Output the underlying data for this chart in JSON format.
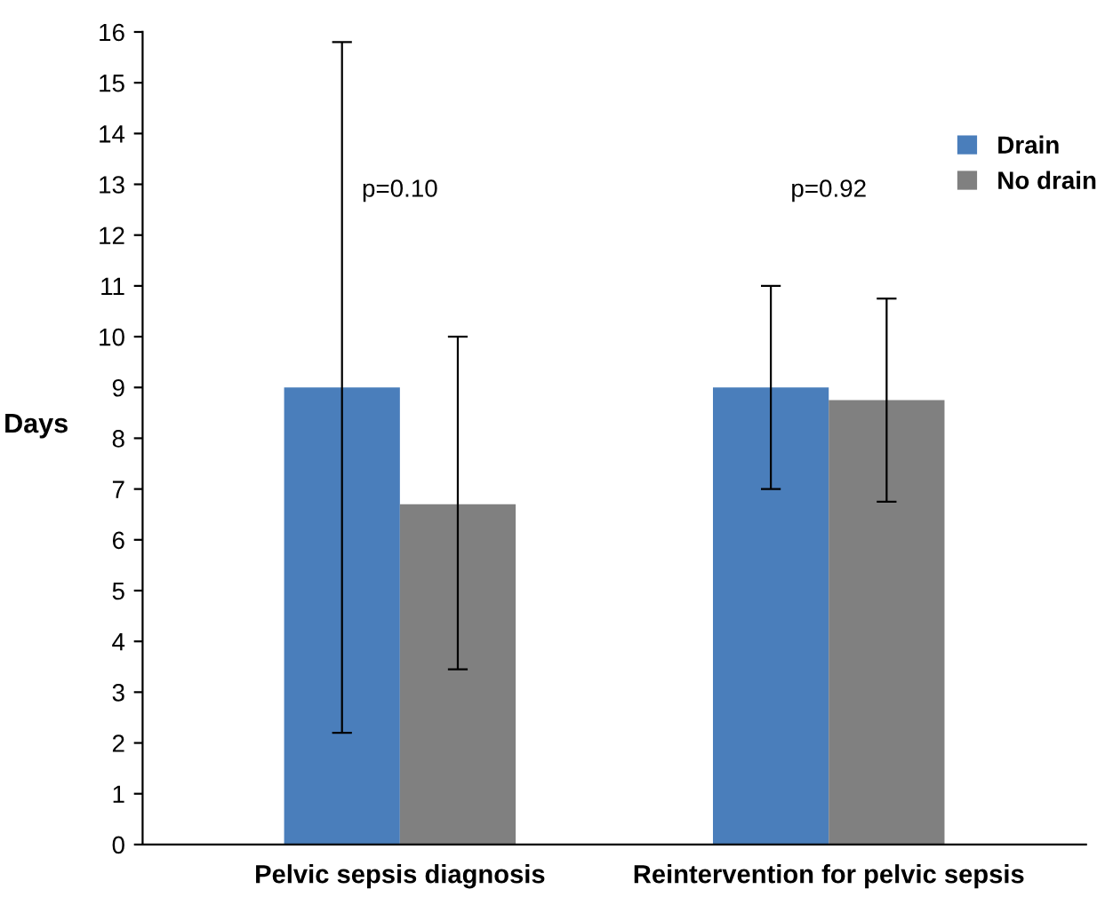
{
  "chart_data": {
    "type": "bar",
    "ylabel": "Days",
    "categories": [
      "Pelvic sepsis diagnosis",
      "Reintervention for pelvic sepsis"
    ],
    "series": [
      {
        "name": "Drain",
        "color": "#4a7ebb",
        "values": [
          9.0,
          9.0
        ],
        "errors": [
          [
            2.2,
            15.8
          ],
          [
            7.0,
            11.0
          ]
        ]
      },
      {
        "name": "No drain",
        "color": "#808080",
        "values": [
          6.7,
          8.75
        ],
        "errors": [
          [
            3.45,
            10.0
          ],
          [
            6.75,
            10.75
          ]
        ]
      }
    ],
    "ylim": [
      0,
      16
    ],
    "yticks": [
      0,
      1,
      2,
      3,
      4,
      5,
      6,
      7,
      8,
      9,
      10,
      11,
      12,
      13,
      14,
      15,
      16
    ],
    "annotations": [
      "p=0.10",
      "p=0.92"
    ],
    "grid": false,
    "legend": "right"
  }
}
